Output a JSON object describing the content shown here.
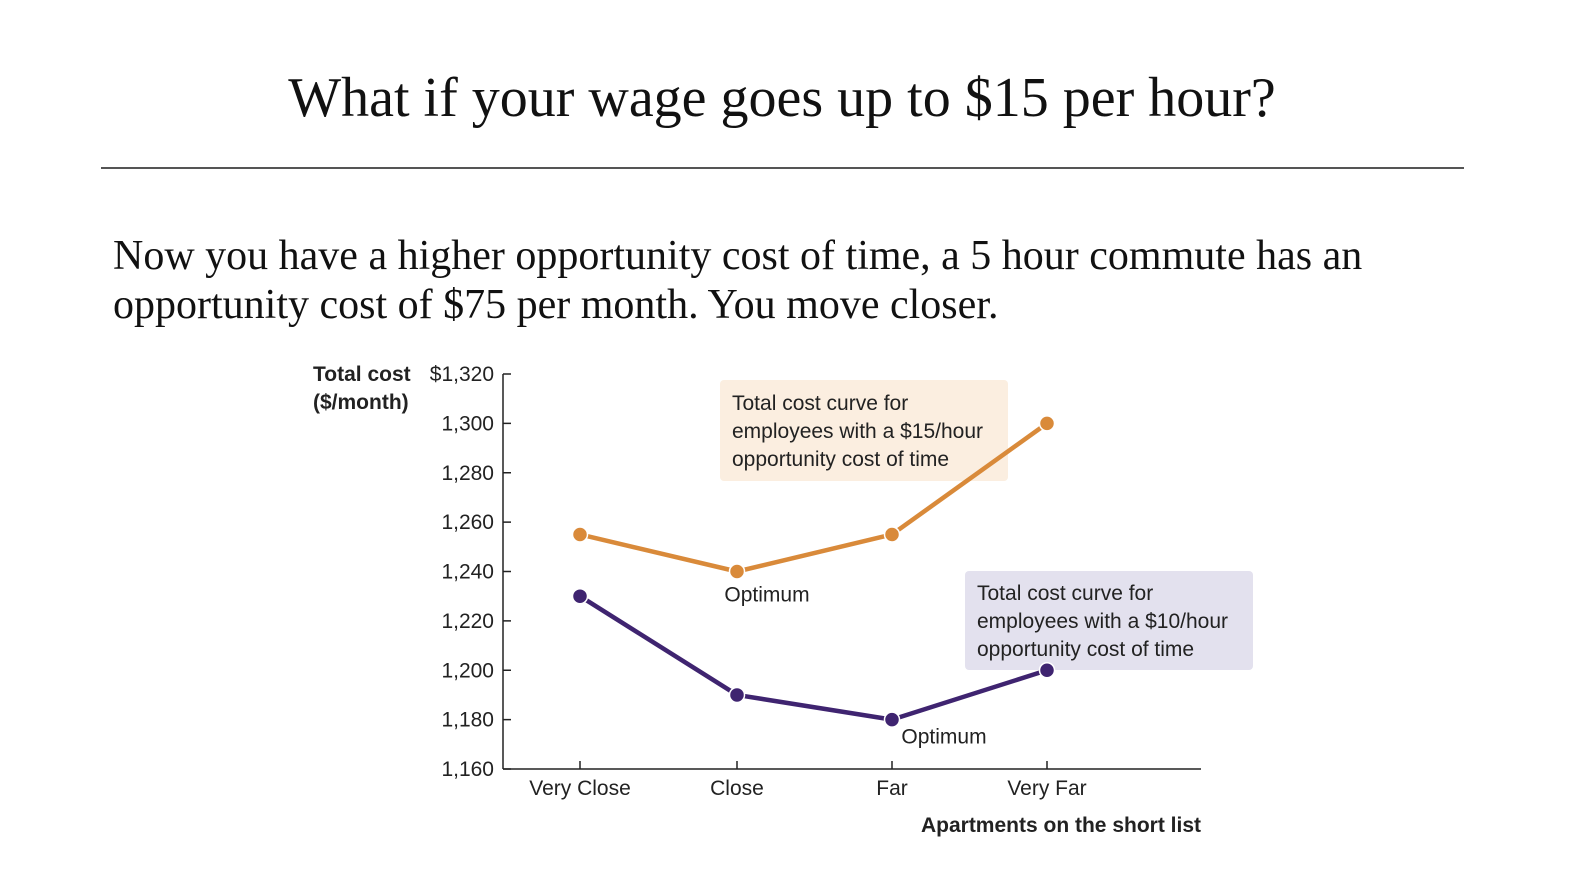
{
  "slide": {
    "title": "What if your wage goes up to $15 per hour?",
    "body": "Now you have a higher opportunity cost of time, a 5 hour commute has an opportunity cost of $75 per month. You move closer."
  },
  "chart_data": {
    "type": "line",
    "ylabel_lines": [
      "Total cost",
      "($/month)"
    ],
    "xlabel": "Apartments on the short list",
    "categories": [
      "Very Close",
      "Close",
      "Far",
      "Very Far"
    ],
    "y_ticks": [
      "$1,320",
      "1,300",
      "1,280",
      "1,260",
      "1,240",
      "1,220",
      "1,200",
      "1,180",
      "1,160"
    ],
    "y_tick_values": [
      1320,
      1300,
      1280,
      1260,
      1240,
      1220,
      1200,
      1180,
      1160
    ],
    "ylim": [
      1160,
      1320
    ],
    "grid": false,
    "series": [
      {
        "values": [
          1255,
          1240,
          1255,
          1300
        ],
        "color": "#d98a3a"
      },
      {
        "values": [
          1230,
          1190,
          1180,
          1200
        ],
        "color": "#3f2470"
      }
    ],
    "annotations": [
      {
        "series": 0,
        "lines": [
          "Total cost curve for",
          "employees with a $15/hour",
          "opportunity cost of time"
        ],
        "background": "#fbeee0"
      },
      {
        "series": 1,
        "lines": [
          "Total cost curve for",
          "employees with a $10/hour",
          "opportunity cost of time"
        ],
        "background": "#e3e1ee"
      }
    ],
    "optimum_labels": [
      {
        "series": 0,
        "category": "Close",
        "text": "Optimum"
      },
      {
        "series": 1,
        "category": "Far",
        "text": "Optimum"
      }
    ]
  }
}
